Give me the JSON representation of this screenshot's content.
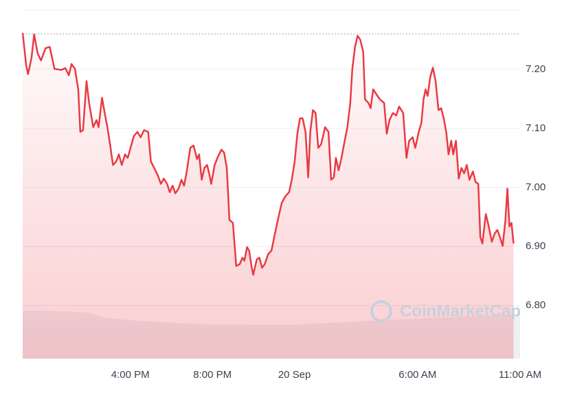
{
  "chart_data": {
    "type": "line",
    "watermark": "CoinMarketCap",
    "x": [
      10.75,
      10.92,
      11.01,
      11.18,
      11.31,
      11.48,
      11.64,
      11.87,
      12.07,
      12.3,
      12.63,
      12.83,
      13.0,
      13.13,
      13.3,
      13.46,
      13.56,
      13.69,
      13.86,
      13.99,
      14.19,
      14.35,
      14.45,
      14.62,
      14.75,
      14.88,
      15.01,
      15.15,
      15.31,
      15.44,
      15.58,
      15.74,
      15.87,
      16.01,
      16.17,
      16.34,
      16.5,
      16.67,
      16.87,
      17.0,
      17.16,
      17.33,
      17.49,
      17.63,
      17.79,
      17.92,
      18.06,
      18.19,
      18.35,
      18.49,
      18.62,
      18.75,
      18.92,
      19.08,
      19.25,
      19.35,
      19.48,
      19.61,
      19.74,
      19.84,
      19.94,
      20.11,
      20.27,
      20.44,
      20.57,
      20.7,
      20.83,
      21.0,
      21.16,
      21.33,
      21.46,
      21.56,
      21.69,
      21.79,
      21.92,
      21.99,
      22.16,
      22.29,
      22.42,
      22.55,
      22.72,
      22.88,
      23.05,
      23.21,
      23.38,
      23.58,
      23.74,
      23.87,
      24.01,
      24.14,
      24.27,
      24.4,
      24.54,
      24.67,
      24.77,
      24.9,
      25.03,
      25.16,
      25.3,
      25.49,
      25.66,
      25.79,
      25.92,
      26.02,
      26.15,
      26.29,
      26.45,
      26.58,
      26.72,
      26.82,
      26.95,
      27.08,
      27.21,
      27.35,
      27.44,
      27.61,
      27.71,
      27.84,
      28.01,
      28.17,
      28.37,
      28.5,
      28.63,
      28.8,
      28.96,
      29.1,
      29.3,
      29.46,
      29.59,
      29.76,
      29.89,
      30.06,
      30.19,
      30.29,
      30.39,
      30.49,
      30.62,
      30.75,
      30.88,
      31.02,
      31.15,
      31.28,
      31.41,
      31.51,
      31.64,
      31.74,
      31.87,
      32.01,
      32.14,
      32.27,
      32.4,
      32.53,
      32.7,
      32.83,
      32.96,
      33.06,
      33.16,
      33.33,
      33.46,
      33.62,
      33.76,
      33.89,
      34.02,
      34.15,
      34.28,
      34.38,
      34.48,
      34.58,
      34.68
    ],
    "series": [
      {
        "color": "#ea3943",
        "values": [
          7.262,
          7.207,
          7.192,
          7.219,
          7.259,
          7.227,
          7.215,
          7.236,
          7.238,
          7.201,
          7.199,
          7.202,
          7.19,
          7.209,
          7.201,
          7.166,
          7.094,
          7.097,
          7.18,
          7.143,
          7.102,
          7.114,
          7.102,
          7.152,
          7.126,
          7.102,
          7.073,
          7.038,
          7.044,
          7.056,
          7.038,
          7.056,
          7.05,
          7.067,
          7.087,
          7.094,
          7.085,
          7.097,
          7.094,
          7.044,
          7.033,
          7.021,
          7.006,
          7.015,
          7.006,
          6.992,
          7.003,
          6.99,
          6.998,
          7.013,
          7.003,
          7.027,
          7.067,
          7.071,
          7.048,
          7.056,
          7.013,
          7.033,
          7.038,
          7.024,
          7.006,
          7.038,
          7.052,
          7.064,
          7.059,
          7.033,
          6.945,
          6.94,
          6.867,
          6.87,
          6.881,
          6.876,
          6.899,
          6.893,
          6.864,
          6.852,
          6.878,
          6.881,
          6.864,
          6.87,
          6.887,
          6.893,
          6.922,
          6.948,
          6.974,
          6.986,
          6.992,
          7.013,
          7.044,
          7.091,
          7.117,
          7.117,
          7.094,
          7.017,
          7.094,
          7.131,
          7.126,
          7.067,
          7.073,
          7.102,
          7.094,
          7.013,
          7.017,
          7.05,
          7.029,
          7.05,
          7.079,
          7.102,
          7.143,
          7.201,
          7.238,
          7.257,
          7.25,
          7.23,
          7.149,
          7.143,
          7.134,
          7.166,
          7.157,
          7.149,
          7.143,
          7.091,
          7.114,
          7.126,
          7.122,
          7.137,
          7.126,
          7.05,
          7.079,
          7.085,
          7.067,
          7.094,
          7.11,
          7.149,
          7.166,
          7.155,
          7.187,
          7.203,
          7.18,
          7.131,
          7.134,
          7.117,
          7.091,
          7.056,
          7.079,
          7.056,
          7.079,
          7.015,
          7.033,
          7.024,
          7.038,
          7.013,
          7.027,
          7.009,
          7.006,
          6.916,
          6.905,
          6.955,
          6.936,
          6.908,
          6.922,
          6.928,
          6.916,
          6.901,
          6.943,
          6.998,
          6.934,
          6.94,
          6.905
        ]
      }
    ],
    "reference_line": 7.26,
    "xlim": [
      10.75,
      35
    ],
    "xticks": [
      {
        "value": 16,
        "label": "4:00 PM"
      },
      {
        "value": 20,
        "label": "8:00 PM"
      },
      {
        "value": 24,
        "label": "20 Sep"
      },
      {
        "value": 30,
        "label": "6:00 AM"
      },
      {
        "value": 35,
        "label": "11:00 AM"
      }
    ],
    "ylim": [
      6.71,
      7.3
    ],
    "yticks": [
      {
        "value": 6.8,
        "label": "6.80"
      },
      {
        "value": 6.9,
        "label": "6.90"
      },
      {
        "value": 7.0,
        "label": "7.00"
      },
      {
        "value": 7.1,
        "label": "7.10"
      },
      {
        "value": 7.2,
        "label": "7.20"
      }
    ],
    "grid": true
  }
}
